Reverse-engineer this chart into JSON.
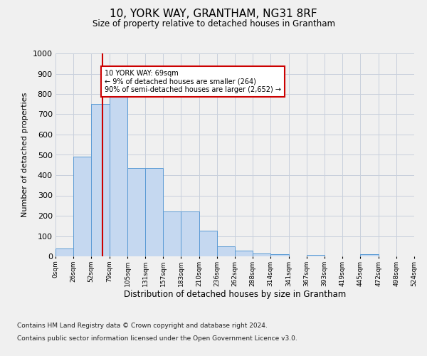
{
  "title": "10, YORK WAY, GRANTHAM, NG31 8RF",
  "subtitle": "Size of property relative to detached houses in Grantham",
  "xlabel": "Distribution of detached houses by size in Grantham",
  "ylabel": "Number of detached properties",
  "bin_edges": [
    0,
    26,
    52,
    79,
    105,
    131,
    157,
    183,
    210,
    236,
    262,
    288,
    314,
    341,
    367,
    393,
    419,
    445,
    472,
    498,
    524
  ],
  "bar_heights": [
    40,
    490,
    750,
    790,
    435,
    435,
    220,
    220,
    125,
    50,
    28,
    15,
    10,
    0,
    8,
    0,
    0,
    10,
    0,
    0
  ],
  "tick_labels": [
    "0sqm",
    "26sqm",
    "52sqm",
    "79sqm",
    "105sqm",
    "131sqm",
    "157sqm",
    "183sqm",
    "210sqm",
    "236sqm",
    "262sqm",
    "288sqm",
    "314sqm",
    "341sqm",
    "367sqm",
    "393sqm",
    "419sqm",
    "445sqm",
    "472sqm",
    "498sqm",
    "524sqm"
  ],
  "bar_color": "#c5d8f0",
  "bar_edge_color": "#5b9bd5",
  "grid_color": "#c8d0dc",
  "vline_x": 69,
  "vline_color": "#cc0000",
  "annotation_text": "10 YORK WAY: 69sqm\n← 9% of detached houses are smaller (264)\n90% of semi-detached houses are larger (2,652) →",
  "annotation_box_color": "#ffffff",
  "annotation_box_edge": "#cc0000",
  "ylim": [
    0,
    1000
  ],
  "yticks": [
    0,
    100,
    200,
    300,
    400,
    500,
    600,
    700,
    800,
    900,
    1000
  ],
  "footer_line1": "Contains HM Land Registry data © Crown copyright and database right 2024.",
  "footer_line2": "Contains public sector information licensed under the Open Government Licence v3.0.",
  "bg_color": "#f0f0f0"
}
